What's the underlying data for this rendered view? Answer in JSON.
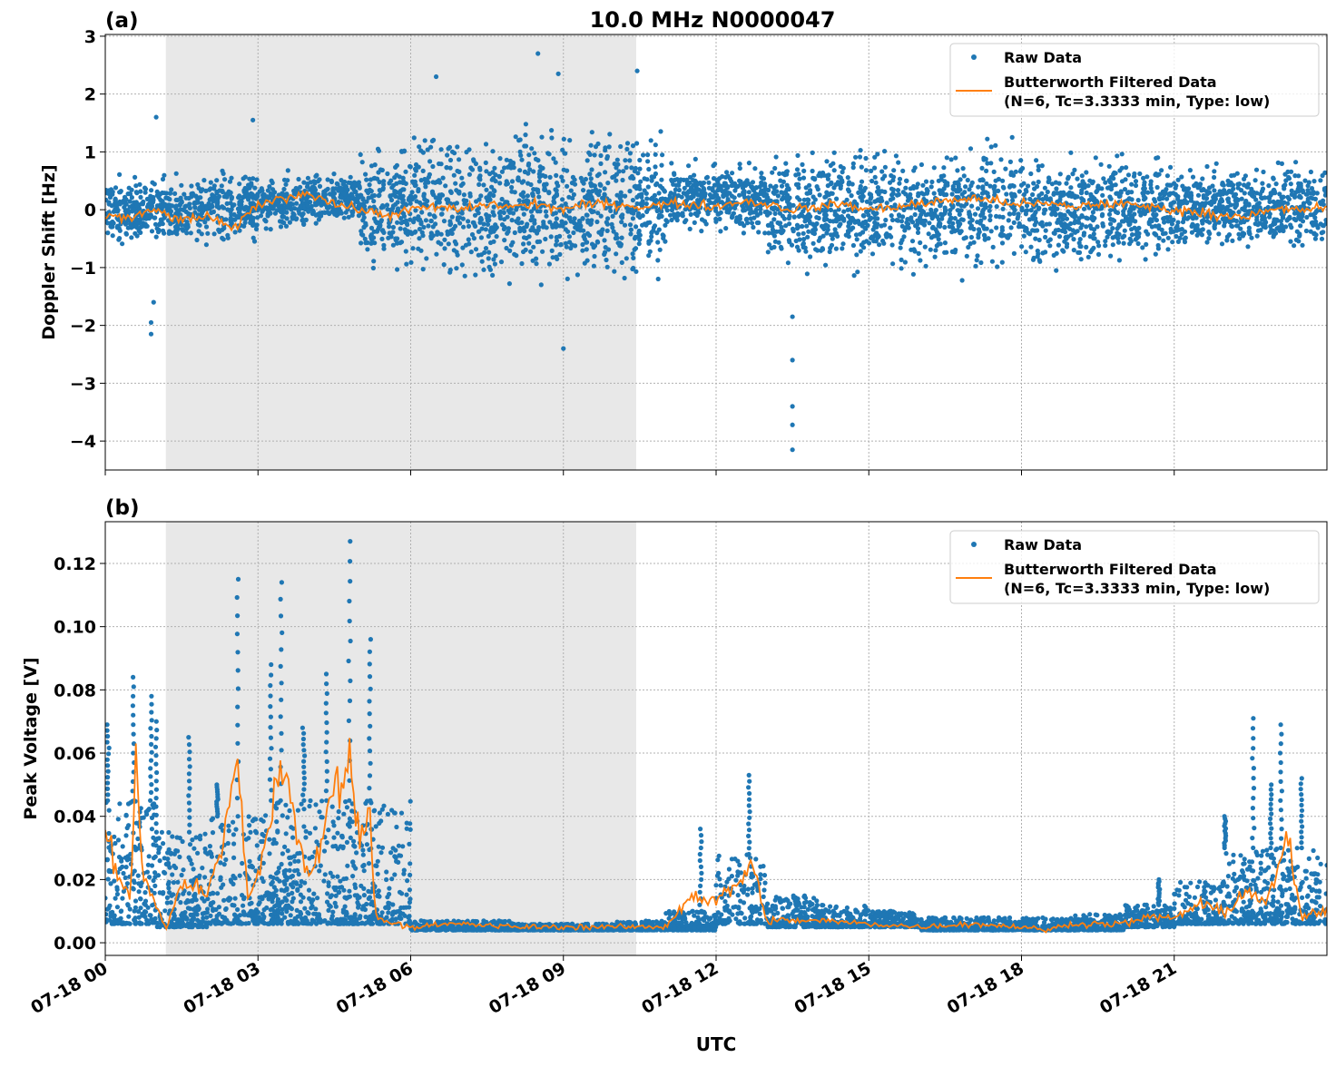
{
  "title": "10.0 MHz N0000047",
  "xlabel": "UTC",
  "x_ticks": [
    "07-18 00",
    "07-18 03",
    "07-18 06",
    "07-18 09",
    "07-18 12",
    "07-18 15",
    "07-18 18",
    "07-18 21"
  ],
  "x_tick_hours": [
    0,
    3,
    6,
    9,
    12,
    15,
    18,
    21
  ],
  "xlim_hours": [
    0,
    24
  ],
  "shaded_interval_hours": [
    1.19,
    10.43
  ],
  "colors": {
    "raw": "#1f77b4",
    "filtered": "#ff7f0e",
    "shade": "#e8e8e8",
    "grid": "#b0b0b0"
  },
  "legend": {
    "raw": "Raw Data",
    "filtered_line1": "Butterworth Filtered Data",
    "filtered_line2": "(N=6, Tc=3.3333 min, Type: low)",
    "placement": "top-right"
  },
  "chart_data": [
    {
      "type": "scatter+line",
      "panel_label": "(a)",
      "ylabel": "Doppler Shift [Hz]",
      "ylim": [
        -4.5,
        3.03
      ],
      "y_ticks": [
        3,
        2,
        1,
        0,
        -1,
        -2,
        -3,
        -4
      ],
      "y_tick_labels": [
        "3",
        "2",
        "1",
        "0",
        "−1",
        "−2",
        "−3",
        "−4"
      ],
      "grid": true,
      "raw_hourly_range": [
        [
          -0.7,
          0.7
        ],
        [
          -0.8,
          0.7
        ],
        [
          -0.7,
          0.8
        ],
        [
          -0.5,
          0.7
        ],
        [
          -0.4,
          0.8
        ],
        [
          -1.3,
          1.4
        ],
        [
          -1.5,
          1.6
        ],
        [
          -1.6,
          1.6
        ],
        [
          -1.6,
          1.7
        ],
        [
          -1.6,
          1.8
        ],
        [
          -1.5,
          1.7
        ],
        [
          -0.5,
          0.9
        ],
        [
          -0.5,
          0.9
        ],
        [
          -1.2,
          1.2
        ],
        [
          -1.3,
          1.3
        ],
        [
          -1.3,
          1.3
        ],
        [
          -1.3,
          1.3
        ],
        [
          -1.3,
          1.4
        ],
        [
          -1.3,
          1.3
        ],
        [
          -1.2,
          1.2
        ],
        [
          -1.0,
          1.1
        ],
        [
          -0.8,
          0.9
        ],
        [
          -0.9,
          1.0
        ],
        [
          -0.9,
          1.0
        ]
      ],
      "raw_outliers": [
        [
          13.5,
          -4.15
        ],
        [
          13.5,
          -3.72
        ],
        [
          13.5,
          -3.4
        ],
        [
          13.5,
          -2.6
        ],
        [
          13.5,
          -1.85
        ],
        [
          0.9,
          -2.15
        ],
        [
          0.9,
          -1.95
        ],
        [
          0.95,
          -1.6
        ],
        [
          8.5,
          2.7
        ],
        [
          8.9,
          2.35
        ],
        [
          9.0,
          -2.4
        ],
        [
          1.0,
          1.6
        ],
        [
          2.9,
          1.55
        ],
        [
          10.45,
          2.4
        ],
        [
          6.5,
          2.3
        ]
      ],
      "filtered": [
        [
          0,
          -0.1
        ],
        [
          0.5,
          -0.15
        ],
        [
          1,
          0.0
        ],
        [
          1.5,
          -0.2
        ],
        [
          2,
          -0.1
        ],
        [
          2.5,
          -0.35
        ],
        [
          3,
          0.1
        ],
        [
          3.5,
          0.2
        ],
        [
          4,
          0.3
        ],
        [
          4.5,
          0.1
        ],
        [
          5,
          0.0
        ],
        [
          5.5,
          -0.1
        ],
        [
          6,
          0.0
        ],
        [
          6.5,
          0.05
        ],
        [
          7,
          0.0
        ],
        [
          7.5,
          0.1
        ],
        [
          8,
          0.05
        ],
        [
          8.5,
          0.1
        ],
        [
          9,
          0.0
        ],
        [
          9.5,
          0.1
        ],
        [
          10,
          0.1
        ],
        [
          10.5,
          0.05
        ],
        [
          11,
          0.1
        ],
        [
          11.5,
          0.1
        ],
        [
          12,
          0.05
        ],
        [
          12.5,
          0.15
        ],
        [
          13,
          0.1
        ],
        [
          13.5,
          0.0
        ],
        [
          14,
          0.05
        ],
        [
          14.5,
          0.1
        ],
        [
          15,
          0.0
        ],
        [
          15.5,
          0.05
        ],
        [
          16,
          0.1
        ],
        [
          16.5,
          0.15
        ],
        [
          17,
          0.2
        ],
        [
          17.5,
          0.15
        ],
        [
          18,
          0.1
        ],
        [
          18.5,
          0.1
        ],
        [
          19,
          0.05
        ],
        [
          19.5,
          0.1
        ],
        [
          20,
          0.1
        ],
        [
          20.5,
          0.05
        ],
        [
          21,
          0.0
        ],
        [
          21.5,
          -0.05
        ],
        [
          22,
          -0.1
        ],
        [
          22.5,
          -0.1
        ],
        [
          23,
          0.0
        ],
        [
          23.5,
          0.0
        ],
        [
          24,
          0.05
        ]
      ]
    },
    {
      "type": "scatter+line",
      "panel_label": "(b)",
      "ylabel": "Peak Voltage [V]",
      "ylim": [
        -0.004,
        0.1332
      ],
      "y_ticks": [
        0,
        0.02,
        0.04,
        0.06,
        0.08,
        0.1,
        0.12
      ],
      "y_tick_labels": [
        "0.00",
        "0.02",
        "0.04",
        "0.06",
        "0.08",
        "0.10",
        "0.12"
      ],
      "grid": true,
      "raw_hourly_range": [
        [
          0.006,
          0.045
        ],
        [
          0.005,
          0.035
        ],
        [
          0.006,
          0.04
        ],
        [
          0.006,
          0.045
        ],
        [
          0.006,
          0.045
        ],
        [
          0.006,
          0.045
        ],
        [
          0.004,
          0.007
        ],
        [
          0.004,
          0.007
        ],
        [
          0.004,
          0.006
        ],
        [
          0.004,
          0.006
        ],
        [
          0.004,
          0.007
        ],
        [
          0.004,
          0.01
        ],
        [
          0.006,
          0.028
        ],
        [
          0.005,
          0.015
        ],
        [
          0.005,
          0.012
        ],
        [
          0.005,
          0.01
        ],
        [
          0.004,
          0.008
        ],
        [
          0.004,
          0.008
        ],
        [
          0.004,
          0.008
        ],
        [
          0.004,
          0.009
        ],
        [
          0.005,
          0.012
        ],
        [
          0.006,
          0.02
        ],
        [
          0.006,
          0.03
        ],
        [
          0.006,
          0.03
        ]
      ],
      "raw_spikes": [
        [
          0.05,
          0.069
        ],
        [
          0.55,
          0.084
        ],
        [
          0.9,
          0.078
        ],
        [
          1.0,
          0.07
        ],
        [
          1.65,
          0.065
        ],
        [
          2.2,
          0.05
        ],
        [
          2.6,
          0.115
        ],
        [
          3.25,
          0.088
        ],
        [
          3.45,
          0.114
        ],
        [
          3.9,
          0.068
        ],
        [
          4.35,
          0.085
        ],
        [
          4.8,
          0.127
        ],
        [
          5.2,
          0.096
        ],
        [
          11.7,
          0.036
        ],
        [
          12.65,
          0.053
        ],
        [
          20.7,
          0.02
        ],
        [
          22.0,
          0.04
        ],
        [
          22.55,
          0.071
        ],
        [
          22.9,
          0.05
        ],
        [
          23.1,
          0.069
        ],
        [
          23.5,
          0.052
        ]
      ],
      "filtered": [
        [
          0,
          0.035
        ],
        [
          0.25,
          0.02
        ],
        [
          0.5,
          0.015
        ],
        [
          0.6,
          0.06
        ],
        [
          0.75,
          0.02
        ],
        [
          1,
          0.012
        ],
        [
          1.2,
          0.004
        ],
        [
          1.5,
          0.02
        ],
        [
          2,
          0.015
        ],
        [
          2.3,
          0.03
        ],
        [
          2.6,
          0.058
        ],
        [
          2.8,
          0.015
        ],
        [
          3,
          0.02
        ],
        [
          3.3,
          0.045
        ],
        [
          3.5,
          0.06
        ],
        [
          3.8,
          0.03
        ],
        [
          4,
          0.02
        ],
        [
          4.3,
          0.035
        ],
        [
          4.5,
          0.05
        ],
        [
          4.8,
          0.06
        ],
        [
          5,
          0.03
        ],
        [
          5.2,
          0.045
        ],
        [
          5.3,
          0.008
        ],
        [
          6,
          0.005
        ],
        [
          7,
          0.006
        ],
        [
          8,
          0.005
        ],
        [
          9,
          0.005
        ],
        [
          10,
          0.005
        ],
        [
          11,
          0.005
        ],
        [
          11.5,
          0.015
        ],
        [
          12,
          0.013
        ],
        [
          12.5,
          0.02
        ],
        [
          12.7,
          0.025
        ],
        [
          13,
          0.007
        ],
        [
          14,
          0.007
        ],
        [
          15,
          0.006
        ],
        [
          16,
          0.005
        ],
        [
          17,
          0.006
        ],
        [
          18,
          0.005
        ],
        [
          18.5,
          0.004
        ],
        [
          19,
          0.006
        ],
        [
          20,
          0.006
        ],
        [
          20.5,
          0.008
        ],
        [
          21,
          0.008
        ],
        [
          21.5,
          0.012
        ],
        [
          22,
          0.01
        ],
        [
          22.5,
          0.017
        ],
        [
          22.8,
          0.012
        ],
        [
          23,
          0.02
        ],
        [
          23.2,
          0.035
        ],
        [
          23.5,
          0.008
        ],
        [
          24,
          0.01
        ]
      ]
    }
  ]
}
